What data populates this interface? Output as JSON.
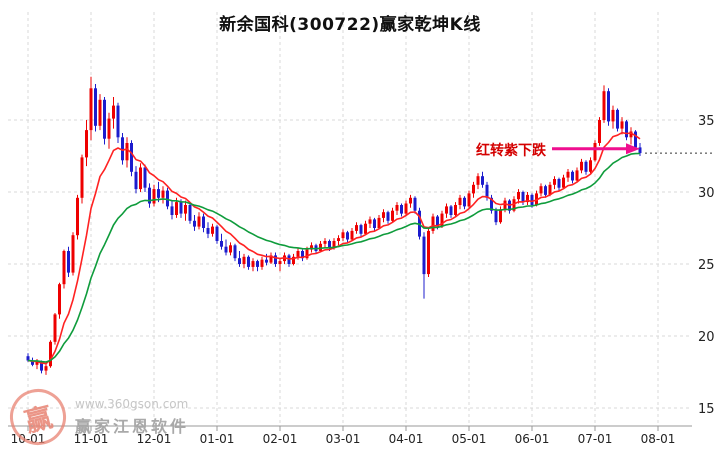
{
  "chart": {
    "colors": {
      "up": "#ee0000",
      "down": "#1c1ccd",
      "ma_fast": "#ff2222",
      "ma_slow": "#0f9c3c",
      "grid": "#d9d9d9",
      "axis": "#999999",
      "text": "#222222",
      "arrow": "#ef0f8f",
      "annotation_text": "#d40000",
      "trail": "#333333"
    }
  },
  "chart_data": {
    "type": "candlestick",
    "title": "新余国科(300722)赢家乾坤K线",
    "x_tick_labels": [
      "10-01",
      "11-01",
      "12-01",
      "01-01",
      "02-01",
      "03-01",
      "04-01",
      "05-01",
      "06-01",
      "07-01",
      "08-01"
    ],
    "candles_per_month": 14,
    "y_ticks": [
      35,
      30,
      25,
      20,
      15
    ],
    "y_range": [
      14.4,
      38.7
    ],
    "price_axis_side": "right",
    "grid": true,
    "annotation": {
      "text": "红转紫下跌",
      "points_at_price": 33.0
    },
    "last_price_dotted_line": 32.7,
    "overlays": [
      {
        "name": "ma-fast-line",
        "type": "ema",
        "period": 10,
        "color": "#ff2222"
      },
      {
        "name": "ma-slow-line",
        "type": "ema",
        "period": 25,
        "color": "#0f9c3c"
      }
    ],
    "ohlc": [
      [
        18.6,
        18.8,
        18.2,
        18.3
      ],
      [
        18.3,
        18.5,
        17.9,
        18.0
      ],
      [
        18.0,
        18.4,
        17.7,
        18.2
      ],
      [
        18.2,
        18.3,
        17.4,
        17.6
      ],
      [
        17.6,
        18.1,
        17.3,
        17.9
      ],
      [
        17.9,
        19.7,
        17.8,
        19.6
      ],
      [
        19.6,
        21.6,
        19.4,
        21.5
      ],
      [
        21.5,
        23.7,
        21.2,
        23.6
      ],
      [
        23.6,
        26.0,
        23.3,
        25.9
      ],
      [
        25.9,
        26.2,
        24.1,
        24.4
      ],
      [
        24.4,
        27.2,
        24.2,
        27.0
      ],
      [
        27.0,
        29.8,
        26.7,
        29.6
      ],
      [
        29.6,
        32.6,
        29.2,
        32.4
      ],
      [
        32.4,
        35.0,
        31.8,
        34.3
      ],
      [
        34.3,
        38.0,
        33.6,
        37.2
      ],
      [
        37.2,
        37.5,
        34.2,
        34.6
      ],
      [
        34.6,
        36.8,
        34.3,
        36.4
      ],
      [
        36.4,
        36.6,
        33.3,
        33.7
      ],
      [
        33.7,
        35.5,
        33.0,
        35.1
      ],
      [
        35.1,
        36.6,
        34.4,
        36.0
      ],
      [
        36.0,
        36.2,
        33.4,
        33.8
      ],
      [
        33.8,
        34.1,
        31.9,
        32.2
      ],
      [
        32.2,
        33.8,
        31.7,
        33.4
      ],
      [
        33.4,
        33.6,
        31.1,
        31.4
      ],
      [
        31.4,
        31.8,
        29.9,
        30.2
      ],
      [
        30.2,
        32.0,
        30.0,
        31.7
      ],
      [
        31.7,
        31.9,
        30.0,
        30.3
      ],
      [
        30.3,
        30.6,
        28.9,
        29.2
      ],
      [
        29.2,
        30.5,
        29.0,
        30.2
      ],
      [
        30.2,
        30.7,
        29.3,
        29.6
      ],
      [
        29.6,
        30.4,
        29.2,
        30.1
      ],
      [
        30.1,
        30.3,
        28.8,
        29.0
      ],
      [
        29.0,
        29.4,
        28.1,
        28.4
      ],
      [
        28.4,
        29.6,
        28.2,
        29.3
      ],
      [
        29.3,
        29.5,
        28.2,
        28.5
      ],
      [
        28.5,
        29.4,
        28.0,
        29.1
      ],
      [
        29.1,
        29.3,
        27.8,
        28.0
      ],
      [
        28.0,
        28.4,
        27.3,
        27.6
      ],
      [
        27.6,
        28.6,
        27.4,
        28.3
      ],
      [
        28.3,
        28.5,
        27.2,
        27.5
      ],
      [
        27.5,
        27.9,
        26.8,
        27.1
      ],
      [
        27.1,
        27.8,
        26.9,
        27.6
      ],
      [
        27.6,
        27.7,
        26.4,
        26.6
      ],
      [
        26.6,
        27.1,
        26.0,
        26.2
      ],
      [
        26.2,
        26.7,
        25.6,
        25.8
      ],
      [
        25.8,
        26.5,
        25.6,
        26.3
      ],
      [
        26.3,
        26.4,
        25.2,
        25.4
      ],
      [
        25.4,
        25.9,
        24.8,
        25.0
      ],
      [
        25.0,
        25.7,
        24.7,
        25.5
      ],
      [
        25.5,
        25.6,
        24.6,
        24.8
      ],
      [
        24.8,
        25.4,
        24.5,
        25.2
      ],
      [
        25.2,
        25.3,
        24.5,
        24.8
      ],
      [
        24.8,
        25.5,
        24.6,
        25.3
      ],
      [
        25.3,
        25.7,
        24.9,
        25.1
      ],
      [
        25.1,
        25.8,
        25.0,
        25.6
      ],
      [
        25.6,
        25.8,
        24.8,
        25.0
      ],
      [
        25.0,
        25.4,
        24.5,
        25.2
      ],
      [
        25.2,
        25.8,
        25.0,
        25.6
      ],
      [
        25.6,
        25.7,
        24.8,
        25.0
      ],
      [
        25.0,
        25.7,
        24.9,
        25.5
      ],
      [
        25.5,
        26.1,
        25.3,
        25.9
      ],
      [
        25.9,
        26.0,
        25.2,
        25.4
      ],
      [
        25.4,
        26.2,
        25.3,
        26.0
      ],
      [
        26.0,
        26.5,
        25.8,
        26.3
      ],
      [
        26.3,
        26.4,
        25.7,
        25.9
      ],
      [
        25.9,
        26.6,
        25.8,
        26.4
      ],
      [
        26.4,
        26.8,
        26.1,
        26.6
      ],
      [
        26.6,
        26.7,
        25.9,
        26.1
      ],
      [
        26.1,
        26.8,
        26.0,
        26.6
      ],
      [
        26.6,
        27.0,
        26.3,
        26.8
      ],
      [
        26.8,
        27.4,
        26.6,
        27.2
      ],
      [
        27.2,
        27.3,
        26.5,
        26.7
      ],
      [
        26.7,
        27.5,
        26.6,
        27.3
      ],
      [
        27.3,
        27.9,
        27.1,
        27.7
      ],
      [
        27.7,
        27.8,
        26.9,
        27.1
      ],
      [
        27.1,
        28.0,
        27.0,
        27.8
      ],
      [
        27.8,
        28.3,
        27.5,
        28.1
      ],
      [
        28.1,
        28.2,
        27.3,
        27.5
      ],
      [
        27.5,
        28.4,
        27.4,
        28.2
      ],
      [
        28.2,
        28.8,
        27.9,
        28.6
      ],
      [
        28.6,
        28.7,
        27.8,
        28.0
      ],
      [
        28.0,
        28.9,
        27.9,
        28.7
      ],
      [
        28.7,
        29.3,
        28.4,
        29.1
      ],
      [
        29.1,
        29.2,
        28.3,
        28.5
      ],
      [
        28.5,
        29.4,
        28.4,
        29.2
      ],
      [
        29.2,
        29.8,
        28.9,
        29.6
      ],
      [
        29.6,
        29.7,
        28.5,
        28.7
      ],
      [
        28.7,
        28.9,
        26.7,
        26.9
      ],
      [
        26.9,
        27.2,
        22.6,
        24.3
      ],
      [
        24.3,
        27.5,
        24.1,
        27.3
      ],
      [
        27.3,
        28.5,
        27.1,
        28.3
      ],
      [
        28.3,
        28.4,
        27.4,
        27.6
      ],
      [
        27.6,
        28.7,
        27.5,
        28.5
      ],
      [
        28.5,
        29.2,
        28.2,
        29.0
      ],
      [
        29.0,
        29.1,
        28.2,
        28.4
      ],
      [
        28.4,
        29.3,
        28.3,
        29.1
      ],
      [
        29.1,
        29.8,
        28.8,
        29.6
      ],
      [
        29.6,
        29.7,
        28.8,
        29.0
      ],
      [
        29.0,
        30.1,
        28.9,
        29.9
      ],
      [
        29.9,
        30.7,
        29.6,
        30.5
      ],
      [
        30.5,
        31.3,
        30.2,
        31.1
      ],
      [
        31.1,
        31.4,
        30.3,
        30.5
      ],
      [
        30.5,
        30.7,
        29.4,
        29.6
      ],
      [
        29.6,
        29.8,
        28.5,
        28.7
      ],
      [
        28.7,
        28.9,
        27.7,
        27.9
      ],
      [
        27.9,
        29.0,
        27.8,
        28.8
      ],
      [
        28.8,
        29.6,
        28.6,
        29.4
      ],
      [
        29.4,
        29.5,
        28.5,
        28.7
      ],
      [
        28.7,
        29.7,
        28.6,
        29.5
      ],
      [
        29.5,
        30.2,
        29.2,
        30.0
      ],
      [
        30.0,
        30.1,
        29.1,
        29.3
      ],
      [
        29.3,
        30.0,
        29.1,
        29.8
      ],
      [
        29.8,
        29.9,
        28.9,
        29.1
      ],
      [
        29.1,
        30.1,
        29.0,
        29.9
      ],
      [
        29.9,
        30.6,
        29.7,
        30.4
      ],
      [
        30.4,
        30.5,
        29.6,
        29.8
      ],
      [
        29.8,
        30.7,
        29.7,
        30.5
      ],
      [
        30.5,
        31.1,
        30.2,
        30.9
      ],
      [
        30.9,
        31.0,
        30.1,
        30.3
      ],
      [
        30.3,
        31.2,
        30.2,
        31.0
      ],
      [
        31.0,
        31.6,
        30.7,
        31.4
      ],
      [
        31.4,
        31.5,
        30.6,
        30.8
      ],
      [
        30.8,
        31.7,
        30.7,
        31.5
      ],
      [
        31.5,
        32.3,
        31.3,
        32.1
      ],
      [
        32.1,
        32.2,
        31.2,
        31.4
      ],
      [
        31.4,
        32.4,
        31.3,
        32.2
      ],
      [
        32.2,
        33.6,
        32.1,
        33.4
      ],
      [
        33.4,
        35.2,
        33.2,
        35.0
      ],
      [
        35.0,
        37.4,
        34.8,
        37.0
      ],
      [
        37.0,
        37.2,
        34.6,
        34.9
      ],
      [
        34.9,
        36.0,
        34.4,
        35.7
      ],
      [
        35.7,
        35.8,
        34.2,
        34.4
      ],
      [
        34.4,
        35.2,
        34.0,
        34.9
      ],
      [
        34.9,
        35.0,
        33.6,
        33.8
      ],
      [
        33.8,
        34.5,
        33.3,
        34.2
      ],
      [
        34.2,
        34.3,
        32.9,
        33.1
      ],
      [
        33.1,
        33.4,
        32.5,
        32.7
      ]
    ]
  },
  "watermark": {
    "site": "www.360gson.com",
    "vendor": "赢家江恩软件",
    "logo_char": "赢"
  }
}
